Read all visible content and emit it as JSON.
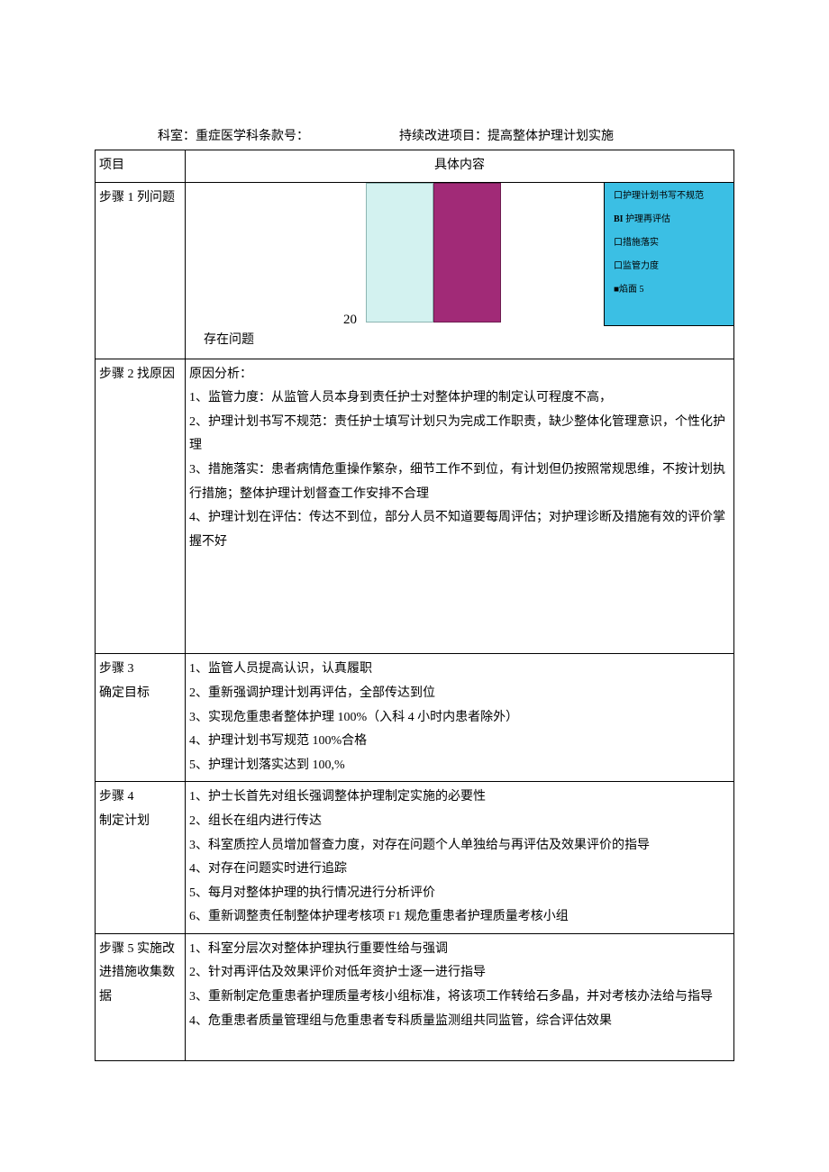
{
  "header": {
    "dept_label": "科室：",
    "dept_value": "重症医学科条款号：",
    "project_label": "持续改进项目：",
    "project_value": "提高整体护理计划实施"
  },
  "table_header": {
    "col1": "项目",
    "col2": "具体内容"
  },
  "step1": {
    "left": "步骤 1 列问题",
    "chart": {
      "bars": [
        {
          "color": "#d3f2f0",
          "border": "#8db5b2"
        },
        {
          "color": "#a12a77",
          "border": "#6d1c50"
        }
      ],
      "tick_label": "20",
      "bottom_label": "存在问题",
      "legend_bg": "#3bbfe4",
      "legend": [
        {
          "swatch_bg": "#ffffff",
          "swatch_border": "#666",
          "prefix": "口",
          "text": "护理计划书写不规范"
        },
        {
          "swatch_bg": "#3bbfe4",
          "swatch_border": "#3bbfe4",
          "prefix": "BI ",
          "prefix_bold": true,
          "text": "护理再评估"
        },
        {
          "swatch_bg": "#ffffff",
          "swatch_border": "#666",
          "prefix": "口",
          "text": "措施落实"
        },
        {
          "swatch_bg": "#ffffff",
          "swatch_border": "#666",
          "prefix": "口",
          "text": "监管力度"
        },
        {
          "swatch_bg": "#a12a77",
          "swatch_border": "#a12a77",
          "prefix": "■",
          "text": "焰面 5"
        }
      ]
    }
  },
  "step2": {
    "left": "步骤 2 找原因",
    "title": "原因分析：",
    "lines": [
      "1、监管力度：从监管人员本身到责任护士对整体护理的制定认可程度不高，",
      "2、护理计划书写不规范：责任护士填写计划只为完成工作职责，缺少整体化管理意识，个性化护理",
      "3、措施落实：患者病情危重操作繁杂，细节工作不到位，有计划但仍按照常规思维，不按计划执行措施；整体护理计划督查工作安排不合理",
      "4、护理计划在评估：传达不到位，部分人员不知道要每周评估；对护理诊断及措施有效的评价掌握不好"
    ]
  },
  "step3": {
    "left1": "步骤 3",
    "left2": "确定目标",
    "lines": [
      "1、监管人员提高认识，认真履职",
      "2、重新强调护理计划再评估，全部传达到位",
      "3、实现危重患者整体护理 100%（入科 4 小时内患者除外）",
      "4、护理计划书写规范 100%合格",
      "5、护理计划落实达到 100,%"
    ]
  },
  "step4": {
    "left1": "步骤 4",
    "left2": "制定计划",
    "lines": [
      "1、护士长首先对组长强调整体护理制定实施的必要性",
      "2、组长在组内进行传达",
      "3、科室质控人员增加督查力度，对存在问题个人单独给与再评估及效果评价的指导",
      "4、对存在问题实时进行追踪",
      "5、每月对整体护理的执行情况进行分析评价",
      "6、重新调整责任制整体护理考核项 F1 规危重患者护理质量考核小组"
    ]
  },
  "step5": {
    "left": "步骤 5 实施改进措施收集数据",
    "lines": [
      "1、科室分层次对整体护理执行重要性给与强调",
      "2、针对再评估及效果评价对低年资护士逐一进行指导",
      "3、重新制定危重患者护理质量考核小组标准，将该项工作转给石多晶，并对考核办法给与指导",
      "4、危重患者质量管理组与危重患者专科质量监测组共同监管，综合评估效果"
    ]
  }
}
